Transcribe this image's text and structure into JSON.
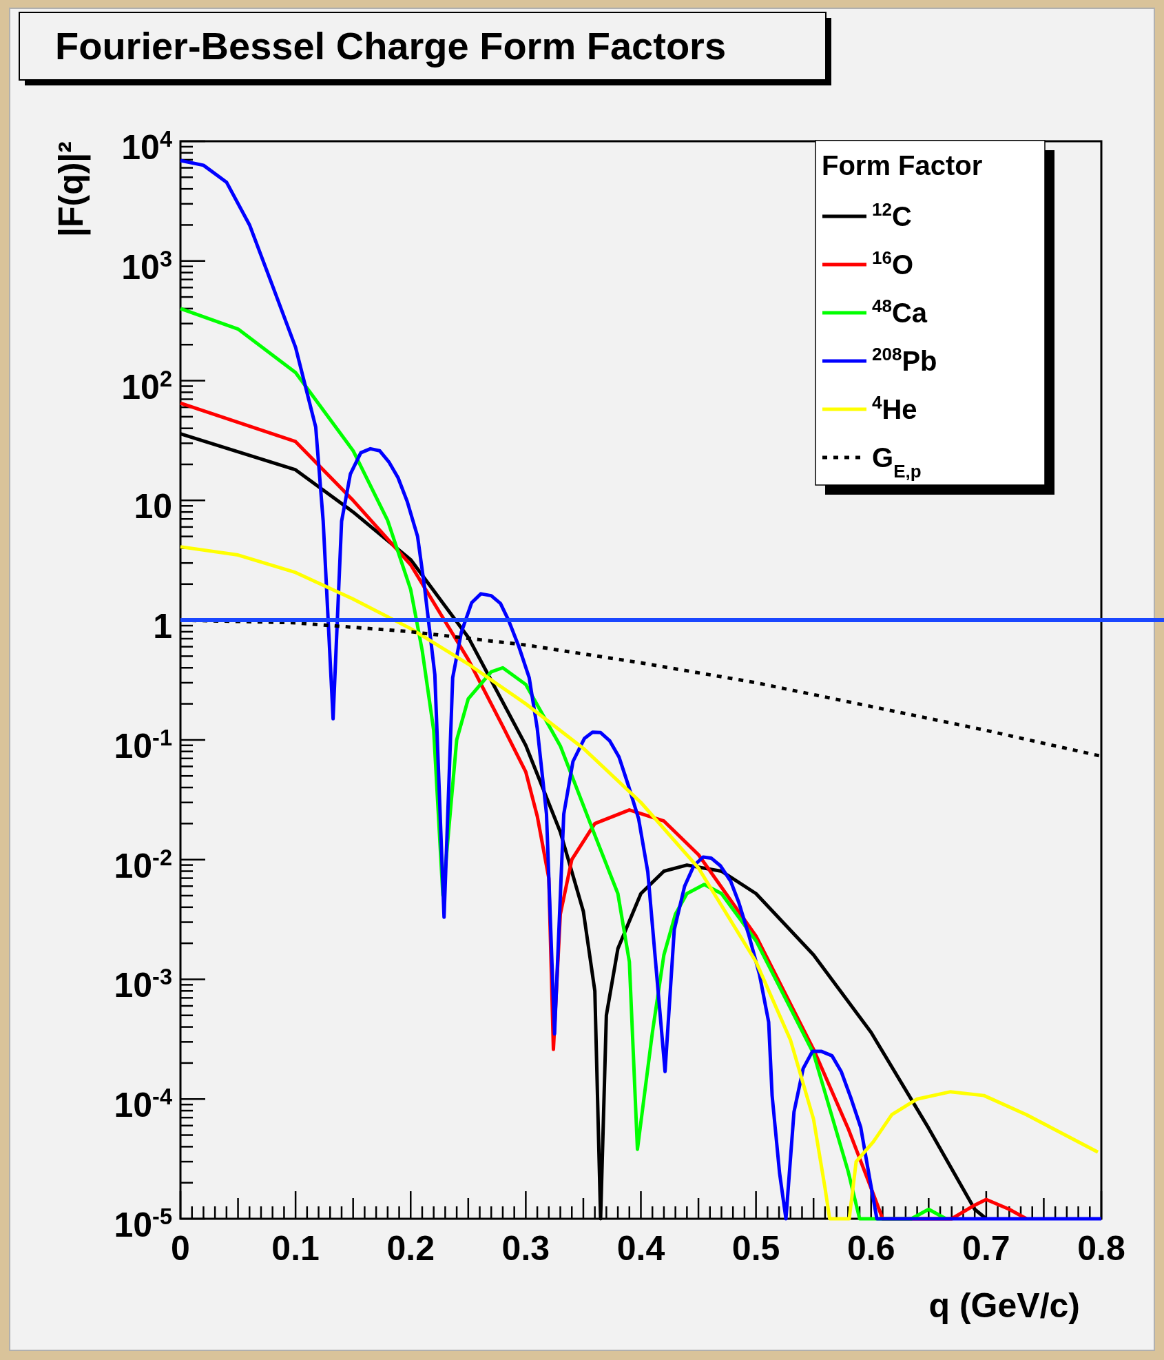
{
  "chart_data": {
    "type": "line",
    "title": "Fourier-Bessel Charge Form Factors",
    "xlabel": "q (GeV/c)",
    "ylabel": "|F(q)|²",
    "legend_title": "Form Factor",
    "legend": "top right",
    "log": "y",
    "xlim": [
      0,
      0.8
    ],
    "xticks": [
      0,
      0.1,
      0.2,
      0.3,
      0.4,
      0.5,
      0.6,
      0.7,
      0.8
    ],
    "ylim": [
      1e-05,
      10000
    ],
    "yticks": [
      {
        "value": 1e-05,
        "label": "10$^{-5}$"
      },
      {
        "value": 0.0001,
        "label": "10$^{-4}$"
      },
      {
        "value": 0.001,
        "label": "10$^{-3}$"
      },
      {
        "value": 0.01,
        "label": "10$^{-2}$"
      },
      {
        "value": 0.1,
        "label": "10$^{-1}$"
      },
      1,
      10,
      {
        "value": 100,
        "label": "10$^{2}$"
      },
      {
        "value": 1000,
        "label": "10$^{3}$"
      },
      {
        "value": 10000,
        "label": "10$^{4}$"
      }
    ],
    "ref_lines": [
      {
        "axis": "y",
        "value": 1,
        "color": "#1a47ff"
      }
    ],
    "series": [
      {
        "name": "$^{12}$C",
        "color": "#000000",
        "x": [
          0,
          0.1,
          0.15,
          0.2,
          0.25,
          0.3,
          0.33,
          0.35,
          0.36,
          0.365,
          0.37,
          0.38,
          0.4,
          0.42,
          0.44,
          0.47,
          0.5,
          0.55,
          0.6,
          0.65,
          0.69,
          0.7
        ],
        "values": [
          36,
          18,
          8,
          3.2,
          0.72,
          0.09,
          0.017,
          0.0037,
          0.0008,
          1e-05,
          0.0005,
          0.0018,
          0.0052,
          0.008,
          0.009,
          0.008,
          0.0052,
          0.0016,
          0.00036,
          5.7e-05,
          1.2e-05,
          1e-05
        ]
      },
      {
        "name": "$^{16}$O",
        "color": "#ff0000",
        "x": [
          0,
          0.1,
          0.15,
          0.2,
          0.25,
          0.28,
          0.3,
          0.31,
          0.32,
          0.324,
          0.33,
          0.34,
          0.36,
          0.39,
          0.42,
          0.45,
          0.5,
          0.55,
          0.58,
          0.6,
          0.61,
          0.67,
          0.69,
          0.7,
          0.72,
          0.735
        ],
        "values": [
          65,
          31,
          10,
          2.9,
          0.47,
          0.13,
          0.054,
          0.023,
          0.007,
          0.00026,
          0.0035,
          0.01,
          0.02,
          0.026,
          0.021,
          0.011,
          0.0023,
          0.00026,
          5.7e-05,
          1.8e-05,
          1e-05,
          1e-05,
          1.3e-05,
          1.45e-05,
          1.2e-05,
          1e-05
        ]
      },
      {
        "name": "$^{48}$Ca",
        "color": "#00ff00",
        "x": [
          0,
          0.05,
          0.1,
          0.15,
          0.18,
          0.2,
          0.21,
          0.22,
          0.228,
          0.24,
          0.25,
          0.27,
          0.28,
          0.3,
          0.33,
          0.36,
          0.38,
          0.39,
          0.397,
          0.41,
          0.42,
          0.43,
          0.44,
          0.455,
          0.47,
          0.5,
          0.55,
          0.58,
          0.59,
          0.635,
          0.65,
          0.665
        ],
        "values": [
          400,
          270,
          117,
          26,
          6.8,
          1.8,
          0.56,
          0.12,
          0.005,
          0.1,
          0.22,
          0.37,
          0.4,
          0.29,
          0.089,
          0.016,
          0.0052,
          0.0014,
          3.8e-05,
          0.00036,
          0.0016,
          0.0035,
          0.0052,
          0.0062,
          0.0052,
          0.0021,
          0.00024,
          2.5e-05,
          1e-05,
          1e-05,
          1.2e-05,
          1e-05
        ]
      },
      {
        "name": "$^{208}$Pb",
        "color": "#0000ff",
        "x": [
          0,
          0.02,
          0.04,
          0.06,
          0.08,
          0.1,
          0.1175,
          0.124,
          0.1326,
          0.14,
          0.1476,
          0.1567,
          0.165,
          0.173,
          0.181,
          0.189,
          0.197,
          0.206,
          0.212,
          0.221,
          0.229,
          0.2365,
          0.244,
          0.253,
          0.261,
          0.27,
          0.278,
          0.285,
          0.294,
          0.303,
          0.31,
          0.318,
          0.325,
          0.333,
          0.341,
          0.351,
          0.358,
          0.365,
          0.373,
          0.381,
          0.389,
          0.398,
          0.406,
          0.421,
          0.429,
          0.438,
          0.446,
          0.454,
          0.461,
          0.469,
          0.478,
          0.485,
          0.494,
          0.503,
          0.511,
          0.514,
          0.5205,
          0.526,
          0.533,
          0.541,
          0.549,
          0.557,
          0.566,
          0.574,
          0.582,
          0.591,
          0.597,
          0.605,
          0.8
        ],
        "values": [
          6900,
          6300,
          4550,
          2000,
          620,
          190,
          41,
          6.7,
          0.15,
          6.7,
          16.6,
          25,
          27,
          26,
          21,
          15.5,
          9.8,
          5,
          1.9,
          0.35,
          0.0033,
          0.33,
          0.79,
          1.4,
          1.66,
          1.6,
          1.38,
          1,
          0.6,
          0.33,
          0.124,
          0.024,
          0.00035,
          0.024,
          0.066,
          0.103,
          0.116,
          0.115,
          0.098,
          0.072,
          0.042,
          0.022,
          0.0079,
          0.00017,
          0.0026,
          0.006,
          0.0089,
          0.0105,
          0.0103,
          0.0089,
          0.0066,
          0.0044,
          0.0023,
          0.0011,
          0.00044,
          0.000107,
          2.4e-05,
          1e-05,
          7.8e-05,
          0.00018,
          0.00025,
          0.00025,
          0.00023,
          0.00017,
          0.000105,
          5.8e-05,
          2.7e-05,
          1e-05,
          1e-05
        ]
      },
      {
        "name": "$^{4}$He",
        "color": "#ffff00",
        "x": [
          0,
          0.05,
          0.1,
          0.15,
          0.2,
          0.25,
          0.3,
          0.35,
          0.4,
          0.45,
          0.5,
          0.53,
          0.55,
          0.56,
          0.564,
          0.581,
          0.587,
          0.602,
          0.618,
          0.64,
          0.669,
          0.698,
          0.735,
          0.797
        ],
        "values": [
          4.1,
          3.5,
          2.5,
          1.5,
          0.85,
          0.43,
          0.2,
          0.085,
          0.03,
          0.0085,
          0.0014,
          0.00031,
          6.8e-05,
          1.8e-05,
          1e-05,
          1e-05,
          3e-05,
          4.4e-05,
          7.4e-05,
          0.0001,
          0.000115,
          0.000107,
          7.4e-05,
          3.6e-05
        ]
      },
      {
        "name": "G$_{E,p}$",
        "color": "#000000",
        "line_style": "dotted",
        "x": [
          0,
          0.1,
          0.2,
          0.3,
          0.4,
          0.5,
          0.6,
          0.7,
          0.8
        ],
        "values": [
          1,
          0.95,
          0.8,
          0.62,
          0.44,
          0.3,
          0.19,
          0.12,
          0.073
        ]
      }
    ]
  }
}
